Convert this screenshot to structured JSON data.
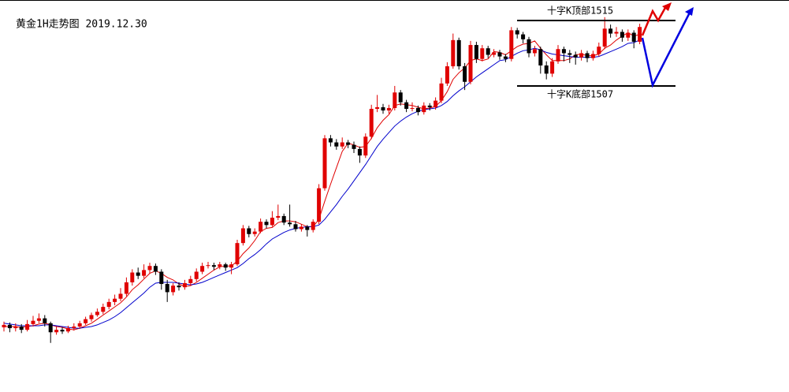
{
  "chart_data": {
    "type": "candlestick",
    "title": "黄金1H走势图 2019.12.30",
    "ylim": [
      1469.6,
      1517.5
    ],
    "up_color": "#e00000",
    "down_color": "#000000",
    "levels": [
      {
        "value": 1515,
        "label": "十字K顶部1515"
      },
      {
        "value": 1507,
        "label": "十字K底部1507"
      }
    ],
    "candles": [
      [
        1477.5,
        1478.2,
        1477.0,
        1477.8
      ],
      [
        1477.8,
        1478.1,
        1476.9,
        1477.4
      ],
      [
        1477.4,
        1478.0,
        1477.0,
        1477.6
      ],
      [
        1477.6,
        1477.9,
        1476.8,
        1477.2
      ],
      [
        1477.2,
        1478.4,
        1477.0,
        1477.9
      ],
      [
        1477.9,
        1478.9,
        1477.6,
        1478.3
      ],
      [
        1478.3,
        1479.2,
        1478.0,
        1478.6
      ],
      [
        1478.6,
        1479.0,
        1477.6,
        1478.0
      ],
      [
        1478.0,
        1478.2,
        1475.6,
        1476.9
      ],
      [
        1476.9,
        1477.6,
        1476.6,
        1477.2
      ],
      [
        1477.2,
        1477.5,
        1476.7,
        1477.0
      ],
      [
        1477.0,
        1477.7,
        1476.8,
        1477.4
      ],
      [
        1477.4,
        1478.0,
        1477.1,
        1477.6
      ],
      [
        1477.6,
        1478.3,
        1477.3,
        1478.0
      ],
      [
        1478.0,
        1478.8,
        1477.8,
        1478.5
      ],
      [
        1478.5,
        1479.3,
        1478.2,
        1479.0
      ],
      [
        1479.0,
        1479.8,
        1478.8,
        1479.4
      ],
      [
        1479.4,
        1480.4,
        1479.1,
        1480.0
      ],
      [
        1480.0,
        1481.0,
        1479.7,
        1480.6
      ],
      [
        1480.6,
        1481.5,
        1480.2,
        1481.0
      ],
      [
        1481.0,
        1482.3,
        1480.7,
        1481.6
      ],
      [
        1481.6,
        1483.6,
        1481.3,
        1483.0
      ],
      [
        1483.0,
        1484.6,
        1482.6,
        1484.2
      ],
      [
        1484.2,
        1484.8,
        1483.4,
        1483.8
      ],
      [
        1483.8,
        1485.2,
        1483.5,
        1484.5
      ],
      [
        1484.5,
        1485.4,
        1484.1,
        1485.0
      ],
      [
        1485.0,
        1485.3,
        1483.9,
        1484.3
      ],
      [
        1484.3,
        1484.6,
        1482.1,
        1482.8
      ],
      [
        1482.8,
        1483.3,
        1480.6,
        1481.8
      ],
      [
        1481.8,
        1482.9,
        1481.4,
        1482.6
      ],
      [
        1482.6,
        1483.0,
        1482.0,
        1482.4
      ],
      [
        1482.4,
        1483.3,
        1482.1,
        1482.9
      ],
      [
        1482.9,
        1483.8,
        1482.6,
        1483.4
      ],
      [
        1483.4,
        1484.7,
        1483.1,
        1484.3
      ],
      [
        1484.3,
        1485.4,
        1484.0,
        1485.0
      ],
      [
        1485.0,
        1485.5,
        1484.7,
        1485.1
      ],
      [
        1485.1,
        1485.4,
        1484.5,
        1484.9
      ],
      [
        1484.9,
        1485.5,
        1484.6,
        1485.2
      ],
      [
        1485.2,
        1485.4,
        1484.4,
        1484.8
      ],
      [
        1484.8,
        1485.5,
        1484.0,
        1485.2
      ],
      [
        1485.2,
        1488.2,
        1485.0,
        1487.8
      ],
      [
        1487.8,
        1490.0,
        1487.5,
        1489.6
      ],
      [
        1489.6,
        1489.9,
        1488.5,
        1488.9
      ],
      [
        1488.9,
        1489.6,
        1488.6,
        1489.2
      ],
      [
        1489.2,
        1490.8,
        1489.0,
        1490.4
      ],
      [
        1490.4,
        1490.7,
        1489.6,
        1490.0
      ],
      [
        1490.0,
        1491.7,
        1489.8,
        1490.9
      ],
      [
        1490.9,
        1492.5,
        1490.6,
        1491.1
      ],
      [
        1491.1,
        1491.4,
        1490.0,
        1490.3
      ],
      [
        1490.3,
        1492.5,
        1489.8,
        1490.1
      ],
      [
        1490.1,
        1490.5,
        1489.2,
        1489.5
      ],
      [
        1489.5,
        1490.1,
        1489.2,
        1489.8
      ],
      [
        1489.8,
        1490.0,
        1488.6,
        1489.4
      ],
      [
        1489.4,
        1490.7,
        1489.1,
        1490.4
      ],
      [
        1490.4,
        1495.0,
        1490.1,
        1494.5
      ],
      [
        1494.5,
        1501.0,
        1494.2,
        1500.6
      ],
      [
        1500.6,
        1501.0,
        1499.6,
        1500.1
      ],
      [
        1500.1,
        1500.5,
        1499.2,
        1499.6
      ],
      [
        1499.6,
        1500.7,
        1499.3,
        1500.1
      ],
      [
        1500.1,
        1500.4,
        1499.4,
        1499.8
      ],
      [
        1499.8,
        1500.2,
        1498.8,
        1499.3
      ],
      [
        1499.3,
        1499.6,
        1497.6,
        1498.5
      ],
      [
        1498.5,
        1501.2,
        1498.2,
        1500.8
      ],
      [
        1500.8,
        1504.7,
        1500.5,
        1504.2
      ],
      [
        1504.2,
        1505.9,
        1503.8,
        1504.4
      ],
      [
        1504.4,
        1504.8,
        1503.6,
        1504.0
      ],
      [
        1504.0,
        1504.7,
        1503.6,
        1504.3
      ],
      [
        1504.3,
        1507.0,
        1504.0,
        1506.2
      ],
      [
        1506.2,
        1506.5,
        1504.6,
        1505.0
      ],
      [
        1505.0,
        1505.3,
        1503.8,
        1504.2
      ],
      [
        1504.2,
        1505.0,
        1503.9,
        1504.3
      ],
      [
        1504.3,
        1504.6,
        1503.4,
        1503.8
      ],
      [
        1503.8,
        1505.0,
        1503.5,
        1504.6
      ],
      [
        1504.6,
        1504.9,
        1504.0,
        1504.4
      ],
      [
        1504.4,
        1505.6,
        1504.1,
        1505.2
      ],
      [
        1505.2,
        1508.0,
        1504.9,
        1507.3
      ],
      [
        1507.3,
        1509.9,
        1507.0,
        1509.4
      ],
      [
        1509.4,
        1513.4,
        1509.1,
        1512.6
      ],
      [
        1512.6,
        1512.9,
        1509.0,
        1509.4
      ],
      [
        1509.4,
        1509.8,
        1506.5,
        1507.5
      ],
      [
        1507.5,
        1512.5,
        1507.2,
        1512.0
      ],
      [
        1512.0,
        1512.4,
        1509.8,
        1510.3
      ],
      [
        1510.3,
        1512.0,
        1510.0,
        1511.6
      ],
      [
        1511.6,
        1511.9,
        1510.4,
        1510.8
      ],
      [
        1510.8,
        1511.5,
        1510.5,
        1511.1
      ],
      [
        1511.1,
        1511.4,
        1510.2,
        1510.6
      ],
      [
        1510.6,
        1510.9,
        1509.9,
        1510.3
      ],
      [
        1510.3,
        1514.2,
        1510.0,
        1513.8
      ],
      [
        1513.8,
        1514.1,
        1512.8,
        1513.3
      ],
      [
        1513.3,
        1513.6,
        1512.2,
        1512.7
      ],
      [
        1512.7,
        1513.0,
        1510.5,
        1511.0
      ],
      [
        1511.0,
        1511.9,
        1510.6,
        1511.5
      ],
      [
        1511.5,
        1511.8,
        1508.5,
        1509.5
      ],
      [
        1509.5,
        1510.0,
        1507.8,
        1508.5
      ],
      [
        1508.5,
        1510.4,
        1508.1,
        1510.0
      ],
      [
        1510.0,
        1512.0,
        1509.7,
        1511.5
      ],
      [
        1511.5,
        1511.8,
        1510.0,
        1511.0
      ],
      [
        1511.0,
        1511.4,
        1509.8,
        1510.8
      ],
      [
        1510.8,
        1511.2,
        1509.6,
        1510.5
      ],
      [
        1510.5,
        1511.4,
        1510.1,
        1511.0
      ],
      [
        1511.0,
        1511.3,
        1509.9,
        1510.4
      ],
      [
        1510.4,
        1511.3,
        1510.1,
        1510.9
      ],
      [
        1510.9,
        1512.3,
        1510.6,
        1511.8
      ],
      [
        1511.8,
        1515.4,
        1511.5,
        1514.0
      ],
      [
        1514.0,
        1514.5,
        1512.9,
        1513.4
      ],
      [
        1513.4,
        1514.2,
        1513.0,
        1513.6
      ],
      [
        1513.6,
        1513.9,
        1512.4,
        1512.9
      ],
      [
        1512.9,
        1513.9,
        1512.5,
        1513.5
      ],
      [
        1513.5,
        1513.8,
        1511.6,
        1512.4
      ],
      [
        1512.4,
        1514.6,
        1512.1,
        1514.2
      ]
    ],
    "lines": [
      {
        "color": "#e00000",
        "values": [
          1477.6,
          1477.6,
          1477.6,
          1477.5,
          1477.6,
          1477.7,
          1477.9,
          1478.0,
          1477.8,
          1477.6,
          1477.5,
          1477.3,
          1477.2,
          1477.4,
          1477.7,
          1478.0,
          1478.5,
          1479.0,
          1479.5,
          1480.0,
          1480.5,
          1481.2,
          1482.1,
          1482.7,
          1483.4,
          1484.1,
          1484.4,
          1484.1,
          1483.6,
          1483.3,
          1482.8,
          1482.5,
          1482.6,
          1483.0,
          1483.5,
          1484.0,
          1484.5,
          1484.9,
          1485.0,
          1485.0,
          1485.6,
          1486.5,
          1487.2,
          1488.1,
          1489.2,
          1489.6,
          1489.7,
          1490.3,
          1490.5,
          1490.5,
          1490.4,
          1490.1,
          1489.8,
          1489.8,
          1490.7,
          1492.9,
          1495.0,
          1497.0,
          1499.0,
          1500.0,
          1499.8,
          1499.5,
          1499.6,
          1500.6,
          1501.9,
          1502.8,
          1503.5,
          1504.6,
          1504.8,
          1504.7,
          1504.6,
          1504.4,
          1504.2,
          1504.3,
          1504.5,
          1505.2,
          1506.3,
          1507.8,
          1508.6,
          1509.2,
          1510.1,
          1510.3,
          1510.1,
          1510.3,
          1511.2,
          1511.1,
          1510.8,
          1511.3,
          1511.8,
          1512.1,
          1512.2,
          1512.5,
          1511.6,
          1510.8,
          1510.1,
          1510.1,
          1510.1,
          1510.3,
          1510.8,
          1510.9,
          1510.7,
          1510.7,
          1510.9,
          1511.6,
          1512.0,
          1512.6,
          1513.1,
          1513.5,
          1513.1,
          1513.3
        ]
      },
      {
        "color": "#0000cc",
        "values": [
          1478.0,
          1477.9,
          1477.8,
          1477.7,
          1477.7,
          1477.7,
          1477.7,
          1477.8,
          1477.8,
          1477.7,
          1477.6,
          1477.5,
          1477.4,
          1477.4,
          1477.5,
          1477.6,
          1477.8,
          1478.1,
          1478.4,
          1478.8,
          1479.3,
          1479.9,
          1480.5,
          1481.1,
          1481.7,
          1482.4,
          1482.9,
          1483.0,
          1483.0,
          1483.0,
          1482.9,
          1482.8,
          1482.7,
          1482.8,
          1483.0,
          1483.3,
          1483.6,
          1483.9,
          1484.2,
          1484.5,
          1484.8,
          1485.3,
          1485.9,
          1486.4,
          1487.0,
          1487.7,
          1488.3,
          1488.7,
          1489.1,
          1489.4,
          1489.6,
          1489.7,
          1489.8,
          1489.8,
          1490.0,
          1490.7,
          1491.6,
          1492.5,
          1493.5,
          1494.4,
          1495.4,
          1496.4,
          1497.4,
          1498.5,
          1499.6,
          1500.5,
          1501.3,
          1502.1,
          1502.7,
          1503.2,
          1503.6,
          1503.9,
          1504.1,
          1504.2,
          1504.3,
          1504.6,
          1505.1,
          1505.8,
          1506.4,
          1506.9,
          1507.5,
          1508.1,
          1508.6,
          1509.1,
          1509.6,
          1510.1,
          1510.2,
          1510.6,
          1511.0,
          1511.3,
          1511.4,
          1511.6,
          1511.4,
          1511.1,
          1510.9,
          1510.8,
          1510.7,
          1510.6,
          1510.5,
          1510.5,
          1510.5,
          1510.5,
          1510.6,
          1510.9,
          1511.2,
          1511.5,
          1511.8,
          1512.2,
          1512.3,
          1512.6
        ]
      }
    ]
  }
}
